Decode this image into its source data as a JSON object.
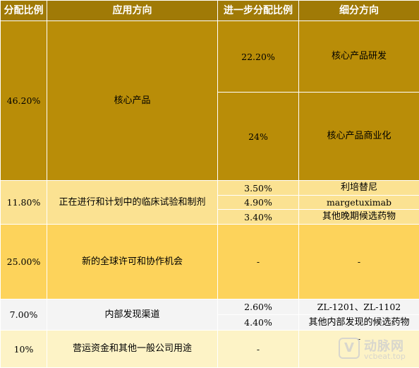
{
  "headers": [
    "分配比例",
    "应用方向",
    "进一步分配比例",
    "细分方向"
  ],
  "groups": [
    {
      "ratio": "46.20%",
      "direction": "核心产品",
      "subs": [
        {
          "ratio": "22.20%",
          "direction": "核心产品研发"
        },
        {
          "ratio": "24%",
          "direction": "核心产品商业化"
        }
      ]
    },
    {
      "ratio": "11.80%",
      "direction": "正在进行和计划中的临床试验和制剂",
      "subs": [
        {
          "ratio": "3.50%",
          "direction": "利培替尼"
        },
        {
          "ratio": "4.90%",
          "direction": "margetuximab"
        },
        {
          "ratio": "3.40%",
          "direction": "其他晚期候选药物"
        }
      ]
    },
    {
      "ratio": "25.00%",
      "direction": "新的全球许可和协作机会",
      "sub_ratio": "-",
      "sub_direction": "-"
    },
    {
      "ratio": "7.00%",
      "direction": "内部发现渠道",
      "subs": [
        {
          "ratio": "2.60%",
          "direction": "ZL-1201、ZL-1102"
        },
        {
          "ratio": "4.40%",
          "direction": "其他内部发现的候选药物"
        }
      ]
    },
    {
      "ratio": "10%",
      "direction": "营运资金和其他一般公司用途",
      "sub_ratio": "-",
      "sub_direction": "-"
    }
  ],
  "watermark": {
    "name": "动脉网",
    "site": "vcbeat.top",
    "badge": "V"
  },
  "colors": {
    "header": "#a07a06",
    "core": "#b98d08",
    "clinical": "#fbe292",
    "licensing": "#fdd35b",
    "internal": "#f4f4f4",
    "operating": "#fdf3c6"
  }
}
